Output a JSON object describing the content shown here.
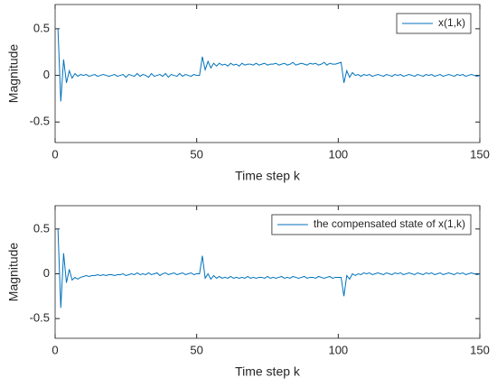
{
  "chart_data": [
    {
      "type": "line",
      "xlabel": "Time step k",
      "ylabel": "Magnitude",
      "x": [
        1,
        2,
        3,
        4,
        5,
        6,
        7,
        8,
        9,
        10,
        11,
        12,
        13,
        14,
        15,
        16,
        17,
        18,
        19,
        20,
        21,
        22,
        23,
        24,
        25,
        26,
        27,
        28,
        29,
        30,
        31,
        32,
        33,
        34,
        35,
        36,
        37,
        38,
        39,
        40,
        41,
        42,
        43,
        44,
        45,
        46,
        47,
        48,
        49,
        50,
        51,
        52,
        53,
        54,
        55,
        56,
        57,
        58,
        59,
        60,
        61,
        62,
        63,
        64,
        65,
        66,
        67,
        68,
        69,
        70,
        71,
        72,
        73,
        74,
        75,
        76,
        77,
        78,
        79,
        80,
        81,
        82,
        83,
        84,
        85,
        86,
        87,
        88,
        89,
        90,
        91,
        92,
        93,
        94,
        95,
        96,
        97,
        98,
        99,
        100,
        101,
        102,
        103,
        104,
        105,
        106,
        107,
        108,
        109,
        110,
        111,
        112,
        113,
        114,
        115,
        116,
        117,
        118,
        119,
        120,
        121,
        122,
        123,
        124,
        125,
        126,
        127,
        128,
        129,
        130,
        131,
        132,
        133,
        134,
        135,
        136,
        137,
        138,
        139,
        140,
        141,
        142,
        143,
        144,
        145,
        146,
        147,
        148,
        149,
        150
      ],
      "series": [
        {
          "name": "x(1,k)",
          "color": "#0072bd",
          "values": [
            0.5,
            -0.28,
            0.17,
            -0.08,
            0.05,
            -0.03,
            0.02,
            -0.01,
            0.01,
            0,
            0.01,
            -0.01,
            0,
            0.01,
            -0.01,
            0,
            0.01,
            0,
            -0.01,
            0,
            0.01,
            -0.01,
            0,
            0.01,
            -0.02,
            0.01,
            0,
            -0.01,
            0.02,
            -0.01,
            0.01,
            0,
            -0.02,
            0.02,
            -0.01,
            0,
            0.01,
            -0.01,
            0.02,
            -0.02,
            0.01,
            0,
            -0.01,
            0.02,
            -0.01,
            0.01,
            0,
            -0.01,
            0.01,
            0,
            0,
            0.2,
            0.06,
            0.15,
            0.08,
            0.13,
            0.1,
            0.13,
            0.11,
            0.12,
            0.1,
            0.13,
            0.11,
            0.12,
            0.1,
            0.13,
            0.11,
            0.12,
            0.12,
            0.11,
            0.13,
            0.11,
            0.12,
            0.13,
            0.11,
            0.12,
            0.12,
            0.13,
            0.11,
            0.12,
            0.13,
            0.11,
            0.12,
            0.14,
            0.11,
            0.12,
            0.13,
            0.12,
            0.11,
            0.13,
            0.12,
            0.13,
            0.11,
            0.12,
            0.14,
            0.11,
            0.13,
            0.12,
            0.12,
            0.13,
            0.14,
            -0.08,
            0.05,
            -0.02,
            0.03,
            0,
            0.01,
            -0.01,
            0.01,
            0,
            0.01,
            -0.01,
            0,
            0.01,
            0,
            -0.01,
            0.01,
            0,
            -0.01,
            0.01,
            0,
            0.01,
            -0.01,
            0,
            0.01,
            0,
            -0.01,
            0.01,
            0,
            -0.01,
            0.01,
            0,
            0.01,
            -0.01,
            0,
            0.01,
            -0.01,
            0,
            0.01,
            0,
            -0.01,
            0.01,
            0,
            0.01,
            -0.01,
            0,
            0.01,
            0,
            -0.01,
            0
          ]
        }
      ],
      "xlim": [
        0,
        150
      ],
      "xticks": [
        0,
        50,
        100,
        150
      ],
      "ylim": [
        -0.72,
        0.76
      ],
      "yticks": [
        -0.5,
        0,
        0.5
      ],
      "grid": false,
      "legend": "northeast"
    },
    {
      "type": "line",
      "xlabel": "Time step k",
      "ylabel": "Magnitude",
      "x": [
        1,
        2,
        3,
        4,
        5,
        6,
        7,
        8,
        9,
        10,
        11,
        12,
        13,
        14,
        15,
        16,
        17,
        18,
        19,
        20,
        21,
        22,
        23,
        24,
        25,
        26,
        27,
        28,
        29,
        30,
        31,
        32,
        33,
        34,
        35,
        36,
        37,
        38,
        39,
        40,
        41,
        42,
        43,
        44,
        45,
        46,
        47,
        48,
        49,
        50,
        51,
        52,
        53,
        54,
        55,
        56,
        57,
        58,
        59,
        60,
        61,
        62,
        63,
        64,
        65,
        66,
        67,
        68,
        69,
        70,
        71,
        72,
        73,
        74,
        75,
        76,
        77,
        78,
        79,
        80,
        81,
        82,
        83,
        84,
        85,
        86,
        87,
        88,
        89,
        90,
        91,
        92,
        93,
        94,
        95,
        96,
        97,
        98,
        99,
        100,
        101,
        102,
        103,
        104,
        105,
        106,
        107,
        108,
        109,
        110,
        111,
        112,
        113,
        114,
        115,
        116,
        117,
        118,
        119,
        120,
        121,
        122,
        123,
        124,
        125,
        126,
        127,
        128,
        129,
        130,
        131,
        132,
        133,
        134,
        135,
        136,
        137,
        138,
        139,
        140,
        141,
        142,
        143,
        144,
        145,
        146,
        147,
        148,
        149,
        150
      ],
      "series": [
        {
          "name": "the compensated state of x(1,k)",
          "color": "#0072bd",
          "values": [
            0.5,
            -0.38,
            0.23,
            -0.1,
            0.05,
            -0.07,
            -0.04,
            -0.06,
            -0.04,
            -0.03,
            -0.02,
            -0.03,
            -0.02,
            -0.02,
            -0.01,
            -0.02,
            -0.01,
            -0.02,
            -0.01,
            -0.01,
            -0.02,
            -0.01,
            -0.01,
            0,
            -0.02,
            -0.01,
            0,
            -0.01,
            0.01,
            -0.01,
            0,
            -0.01,
            0.01,
            -0.01,
            0,
            0.01,
            -0.02,
            0,
            0.01,
            -0.01,
            0,
            0.01,
            -0.01,
            0,
            0.01,
            -0.01,
            0,
            0.01,
            -0.01,
            0,
            0,
            0.2,
            -0.05,
            0,
            -0.06,
            -0.02,
            -0.05,
            -0.03,
            -0.05,
            -0.04,
            -0.05,
            -0.03,
            -0.05,
            -0.04,
            -0.05,
            -0.04,
            -0.05,
            -0.03,
            -0.05,
            -0.04,
            -0.05,
            -0.04,
            -0.04,
            -0.05,
            -0.03,
            -0.05,
            -0.04,
            -0.05,
            -0.04,
            -0.03,
            -0.05,
            -0.04,
            -0.05,
            -0.03,
            -0.04,
            -0.05,
            -0.04,
            -0.03,
            -0.05,
            -0.04,
            -0.04,
            -0.05,
            -0.03,
            -0.04,
            -0.05,
            -0.04,
            -0.03,
            -0.05,
            -0.04,
            -0.04,
            -0.04,
            -0.25,
            -0.02,
            -0.06,
            0,
            -0.02,
            0,
            -0.01,
            0.01,
            0,
            0.01,
            -0.01,
            0,
            0.01,
            0,
            -0.01,
            0.01,
            0,
            -0.01,
            0.01,
            0,
            0.01,
            -0.01,
            0,
            0.01,
            0,
            -0.01,
            0.01,
            0,
            -0.01,
            0.01,
            0,
            0.01,
            -0.01,
            0,
            0.01,
            -0.01,
            0,
            0.01,
            0,
            -0.01,
            0.01,
            0,
            0.01,
            -0.01,
            0,
            0.01,
            0,
            -0.01,
            0
          ]
        }
      ],
      "xlim": [
        0,
        150
      ],
      "xticks": [
        0,
        50,
        100,
        150
      ],
      "ylim": [
        -0.72,
        0.76
      ],
      "yticks": [
        -0.5,
        0,
        0.5
      ],
      "grid": false,
      "legend": "northeast"
    }
  ]
}
